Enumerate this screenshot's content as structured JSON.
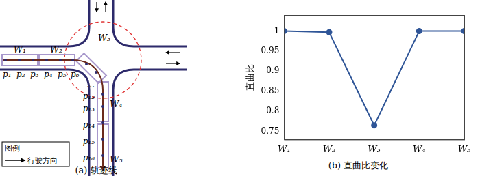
{
  "chart_data": {
    "type": "line",
    "title": "(b) 直曲比变化",
    "y_label": "直曲比",
    "categories": [
      "W₁",
      "W₂",
      "W₃",
      "W₄",
      "W₅"
    ],
    "values": [
      1,
      0.997,
      0.765,
      1,
      1
    ],
    "color": "#2f5597",
    "marker": "circle",
    "ylim": [
      0.73,
      1.04
    ],
    "yticks": [
      0.75,
      0.8,
      0.85,
      0.9,
      0.95,
      1
    ],
    "grid": false
  },
  "diagram": {
    "title": "(a) 轨迹线",
    "windows": [
      "W₁",
      "W₂",
      "W₃",
      "W₄",
      "W₅"
    ],
    "points": [
      "p₁",
      "p₂",
      "p₃",
      "p₄",
      "p₅",
      "p₆",
      "…",
      "p₁₂",
      "p₁₃",
      "p₁₄",
      "p₁₅",
      "p₁₆"
    ],
    "legend": {
      "title": "图例",
      "entry": "行驶方向"
    }
  }
}
